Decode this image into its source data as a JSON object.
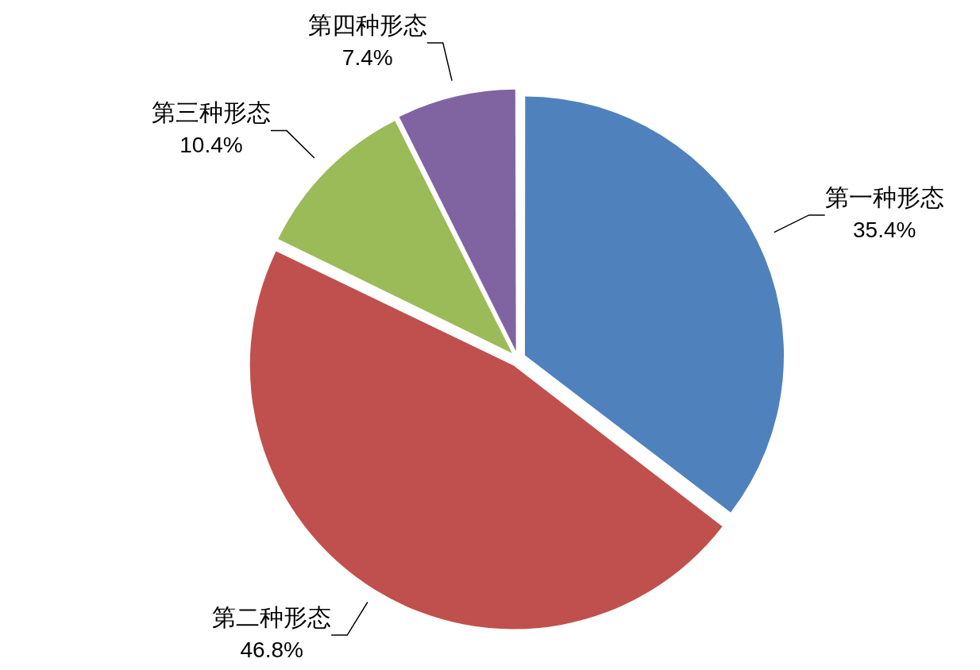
{
  "chart_data": {
    "type": "pie",
    "categories": [
      "第一种形态",
      "第二种形态",
      "第三种形态",
      "第四种形态"
    ],
    "values": [
      35.4,
      46.8,
      10.4,
      7.4
    ],
    "value_labels": [
      "35.4%",
      "46.8%",
      "10.4%",
      "7.4%"
    ],
    "colors": [
      "#4f81bd",
      "#c0504d",
      "#9bbb59",
      "#8064a2"
    ],
    "legend": false
  }
}
